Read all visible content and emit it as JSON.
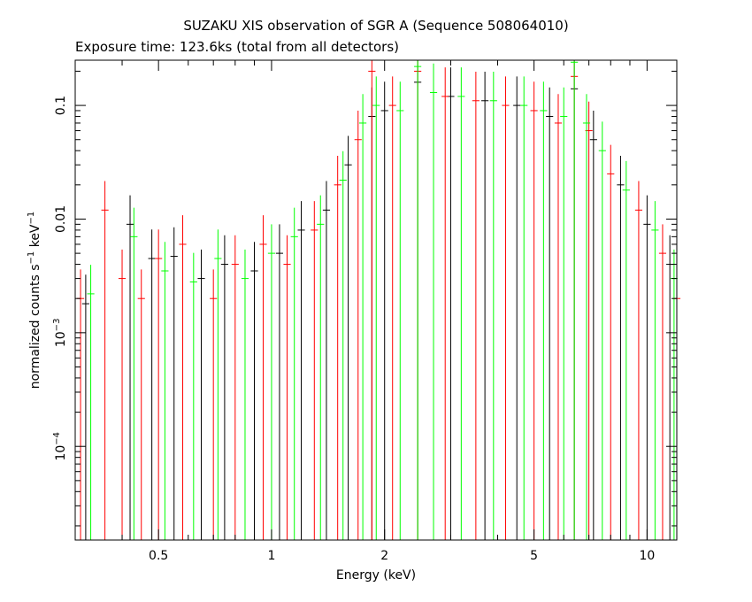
{
  "chart_data": {
    "type": "scatter",
    "title": "SUZAKU XIS observation of SGR A (Sequence 508064010)",
    "subtitle": "Exposure time: 123.6ks (total from all detectors)",
    "xlabel": "Energy (keV)",
    "ylabel_main": "normalized counts s",
    "ylabel_mid": " keV",
    "ylabel_exp": "−1",
    "x_scale": "log",
    "y_scale": "log",
    "xlim": [
      0.3,
      12
    ],
    "ylim": [
      1.5e-05,
      0.25
    ],
    "x_ticks": [
      {
        "value": 0.5,
        "label": "0.5"
      },
      {
        "value": 1,
        "label": "1"
      },
      {
        "value": 2,
        "label": "2"
      },
      {
        "value": 5,
        "label": "5"
      },
      {
        "value": 10,
        "label": "10"
      }
    ],
    "y_ticks": [
      {
        "value": 0.1,
        "label": "0.1"
      },
      {
        "value": 0.01,
        "label": "0.01"
      },
      {
        "value": 0.001,
        "label_base": "10",
        "label_exp": "−3"
      },
      {
        "value": 0.0001,
        "label_base": "10",
        "label_exp": "−4"
      }
    ],
    "series": [
      {
        "color": "#000000",
        "points": [
          [
            0.32,
            0.0018
          ],
          [
            0.42,
            0.009
          ],
          [
            0.48,
            0.0045
          ],
          [
            0.55,
            0.0047
          ],
          [
            0.65,
            0.003
          ],
          [
            0.75,
            0.004
          ],
          [
            0.9,
            0.0035
          ],
          [
            1.05,
            0.005
          ],
          [
            1.2,
            0.008
          ],
          [
            1.4,
            0.012
          ],
          [
            1.6,
            0.03
          ],
          [
            1.85,
            0.08
          ],
          [
            2.0,
            0.09
          ],
          [
            2.45,
            0.16
          ],
          [
            3.0,
            0.12
          ],
          [
            3.7,
            0.11
          ],
          [
            4.5,
            0.1
          ],
          [
            5.5,
            0.08
          ],
          [
            6.4,
            0.14
          ],
          [
            7.2,
            0.05
          ],
          [
            8.5,
            0.02
          ],
          [
            10,
            0.009
          ],
          [
            11.5,
            0.004
          ]
        ]
      },
      {
        "color": "#ff0000",
        "points": [
          [
            0.31,
            0.002
          ],
          [
            0.36,
            0.012
          ],
          [
            0.4,
            0.003
          ],
          [
            0.45,
            0.002
          ],
          [
            0.5,
            0.0045
          ],
          [
            0.58,
            0.006
          ],
          [
            0.7,
            0.002
          ],
          [
            0.8,
            0.004
          ],
          [
            0.95,
            0.006
          ],
          [
            1.1,
            0.004
          ],
          [
            1.3,
            0.008
          ],
          [
            1.5,
            0.02
          ],
          [
            1.7,
            0.05
          ],
          [
            1.85,
            0.2
          ],
          [
            2.1,
            0.1
          ],
          [
            2.45,
            0.2
          ],
          [
            2.9,
            0.12
          ],
          [
            3.5,
            0.11
          ],
          [
            4.2,
            0.1
          ],
          [
            5.0,
            0.09
          ],
          [
            5.8,
            0.07
          ],
          [
            6.4,
            0.18
          ],
          [
            7.0,
            0.06
          ],
          [
            8.0,
            0.025
          ],
          [
            9.5,
            0.012
          ],
          [
            11,
            0.005
          ],
          [
            12,
            0.002
          ]
        ]
      },
      {
        "color": "#00ff00",
        "points": [
          [
            0.33,
            0.0022
          ],
          [
            0.43,
            0.007
          ],
          [
            0.52,
            0.0035
          ],
          [
            0.62,
            0.0028
          ],
          [
            0.72,
            0.0045
          ],
          [
            0.85,
            0.003
          ],
          [
            1.0,
            0.005
          ],
          [
            1.15,
            0.007
          ],
          [
            1.35,
            0.009
          ],
          [
            1.55,
            0.022
          ],
          [
            1.75,
            0.07
          ],
          [
            1.9,
            0.1
          ],
          [
            2.2,
            0.09
          ],
          [
            2.45,
            0.22
          ],
          [
            2.7,
            0.13
          ],
          [
            3.2,
            0.12
          ],
          [
            3.9,
            0.11
          ],
          [
            4.7,
            0.1
          ],
          [
            5.3,
            0.09
          ],
          [
            6.0,
            0.08
          ],
          [
            6.4,
            0.24
          ],
          [
            6.9,
            0.07
          ],
          [
            7.6,
            0.04
          ],
          [
            8.8,
            0.018
          ],
          [
            10.5,
            0.008
          ],
          [
            11.8,
            0.003
          ]
        ]
      }
    ]
  }
}
